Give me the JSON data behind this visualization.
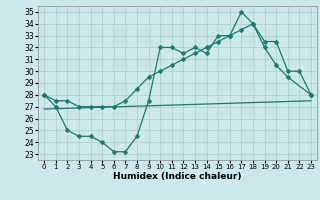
{
  "xlabel": "Humidex (Indice chaleur)",
  "xlim": [
    -0.5,
    23.5
  ],
  "ylim": [
    22.5,
    35.5
  ],
  "yticks": [
    23,
    24,
    25,
    26,
    27,
    28,
    29,
    30,
    31,
    32,
    33,
    34,
    35
  ],
  "xticks": [
    0,
    1,
    2,
    3,
    4,
    5,
    6,
    7,
    8,
    9,
    10,
    11,
    12,
    13,
    14,
    15,
    16,
    17,
    18,
    19,
    20,
    21,
    22,
    23
  ],
  "bg_color": "#cce8ea",
  "grid_color": "#aacccc",
  "line_color": "#1a7a6e",
  "line1_x": [
    0,
    1,
    2,
    3,
    4,
    5,
    6,
    7,
    8,
    9,
    10,
    11,
    12,
    13,
    14,
    15,
    16,
    17,
    18,
    19,
    20,
    21,
    23
  ],
  "line1_y": [
    28,
    27,
    25,
    24.5,
    24.5,
    24,
    23.2,
    23.2,
    24.5,
    27.5,
    32,
    32,
    31.5,
    32,
    31.5,
    33,
    33,
    35,
    34,
    32,
    30.5,
    29.5,
    28
  ],
  "line2_x": [
    0,
    1,
    2,
    3,
    4,
    5,
    6,
    7,
    8,
    9,
    10,
    11,
    12,
    13,
    14,
    15,
    16,
    17,
    18,
    19,
    20,
    21,
    22,
    23
  ],
  "line2_y": [
    28,
    27.5,
    27.5,
    27,
    27,
    27,
    27,
    27.5,
    28.5,
    29.5,
    30,
    30.5,
    31,
    31.5,
    32,
    32.5,
    33,
    33.5,
    34,
    32.5,
    32.5,
    30,
    30,
    28
  ],
  "line3_x": [
    0,
    23
  ],
  "line3_y": [
    26.8,
    27.5
  ],
  "marker_size": 2.5,
  "linewidth": 0.9,
  "figsize": [
    3.2,
    2.0
  ],
  "dpi": 100
}
